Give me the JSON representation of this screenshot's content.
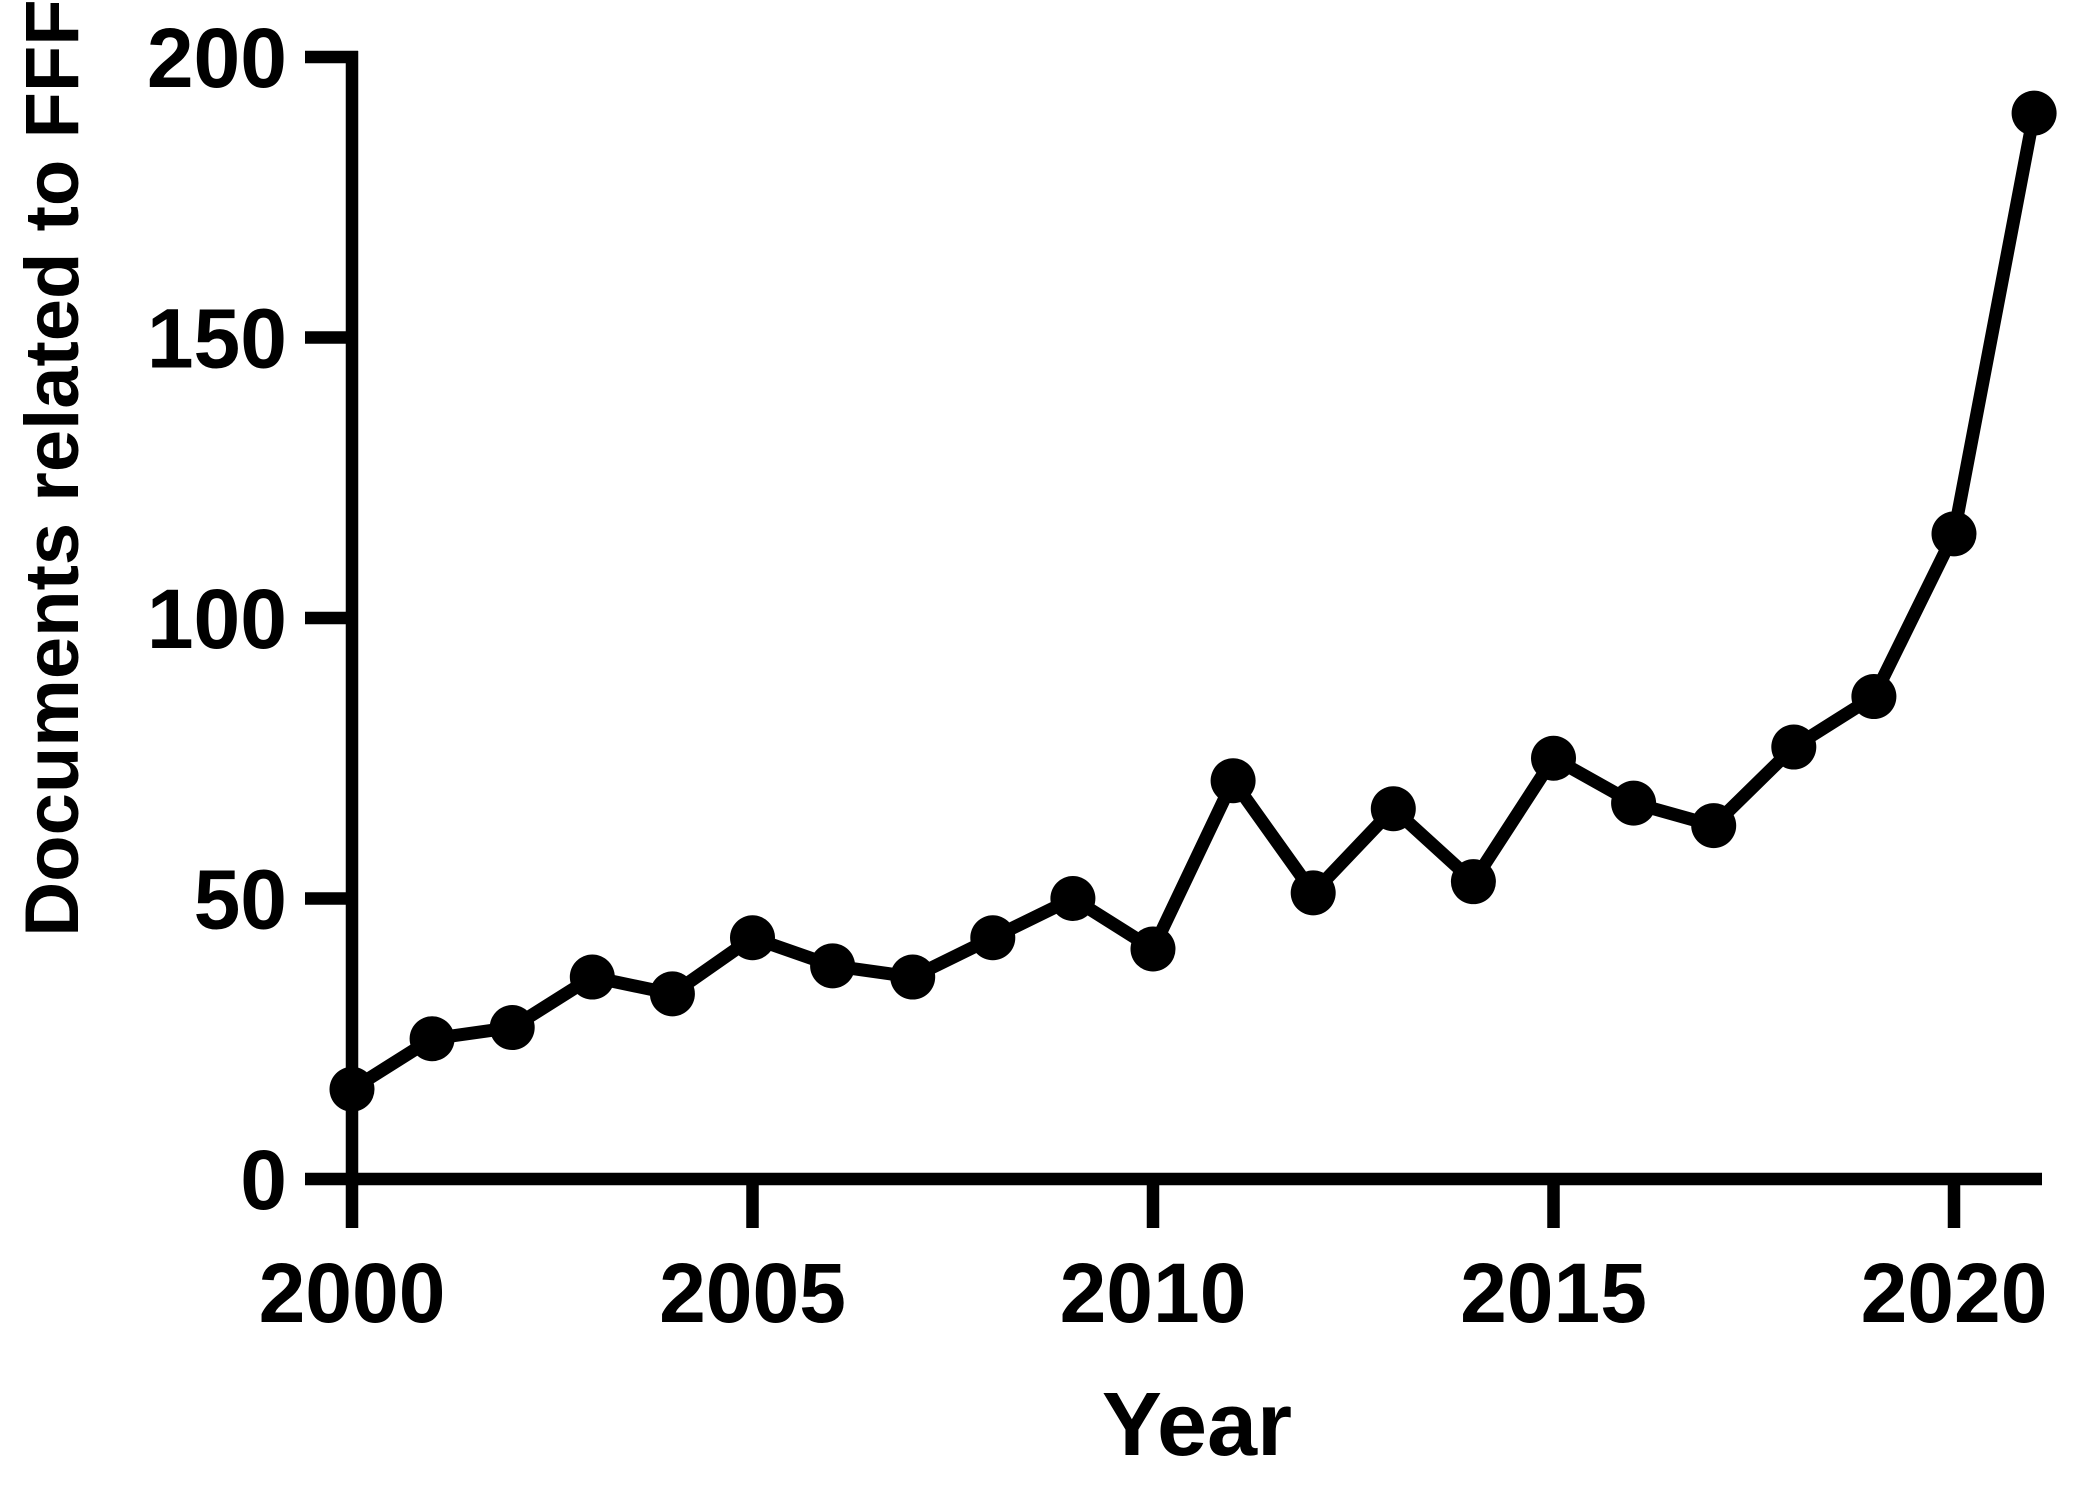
{
  "chart_data": {
    "type": "line",
    "title": "",
    "xlabel": "Year",
    "ylabel": "Documents related to FFF",
    "x": [
      2000,
      2001,
      2002,
      2003,
      2004,
      2005,
      2006,
      2007,
      2008,
      2009,
      2010,
      2011,
      2012,
      2013,
      2014,
      2015,
      2016,
      2017,
      2018,
      2019,
      2020,
      2021
    ],
    "series": [
      {
        "name": "Documents related to FFF",
        "values": [
          16,
          25,
          27,
          36,
          33,
          43,
          38,
          36,
          43,
          50,
          41,
          71,
          51,
          66,
          53,
          75,
          67,
          63,
          77,
          86,
          115,
          190
        ]
      }
    ],
    "xlim": [
      2000,
      2021
    ],
    "ylim": [
      0,
      200
    ],
    "xticks": [
      2000,
      2005,
      2010,
      2015,
      2020
    ],
    "yticks": [
      0,
      50,
      100,
      150,
      200
    ],
    "grid": false,
    "legend": "none",
    "marker": "filled-circle",
    "line_color": "#000000",
    "axis_color": "#000000",
    "background_color": "#ffffff"
  }
}
